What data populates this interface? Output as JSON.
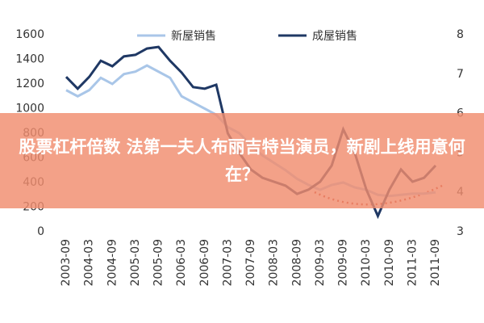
{
  "chart_data": {
    "type": "line",
    "categories": [
      "2003-09",
      null,
      "2004-03",
      null,
      "2004-09",
      null,
      "2005-03",
      null,
      "2005-09",
      null,
      "2006-03",
      null,
      "2006-09",
      null,
      "2007-03",
      null,
      "2007-09",
      null,
      "2008-03",
      null,
      "2008-09",
      null,
      "2009-03",
      null,
      "2009-09",
      null,
      "2010-03",
      null,
      "2010-09",
      null,
      "2011-03",
      null,
      "2011-09"
    ],
    "series": [
      {
        "name": "新屋销售",
        "color": "#a9c6e8",
        "values": [
          1150,
          1100,
          1150,
          1250,
          1200,
          1280,
          1300,
          1350,
          1300,
          1250,
          1100,
          1050,
          1000,
          950,
          850,
          800,
          700,
          620,
          560,
          500,
          430,
          380,
          340,
          380,
          400,
          360,
          340,
          300,
          290,
          300,
          310,
          310,
          320
        ]
      },
      {
        "name": "成屋销售",
        "color": "#1f3864",
        "axis": "y2",
        "values": [
          6.93,
          6.63,
          6.93,
          7.34,
          7.2,
          7.45,
          7.49,
          7.65,
          7.69,
          7.34,
          7.04,
          6.67,
          6.63,
          6.73,
          5.5,
          5.0,
          4.58,
          4.37,
          4.27,
          4.17,
          3.96,
          4.07,
          4.27,
          4.68,
          5.6,
          5.0,
          4.07,
          3.4,
          4.07,
          4.58,
          4.27,
          4.37,
          4.68
        ]
      }
    ],
    "ylim": [
      0,
      1600
    ],
    "yticks": [
      0,
      200,
      400,
      600,
      800,
      1000,
      1200,
      1400,
      1600
    ],
    "y2lim": [
      3,
      8
    ],
    "y2ticks": [
      3,
      4,
      5,
      6,
      7,
      8
    ]
  },
  "overlay": {
    "headline": "股票杠杆倍数 法第一夫人布丽吉特当演员，新剧上线用意何在？"
  }
}
